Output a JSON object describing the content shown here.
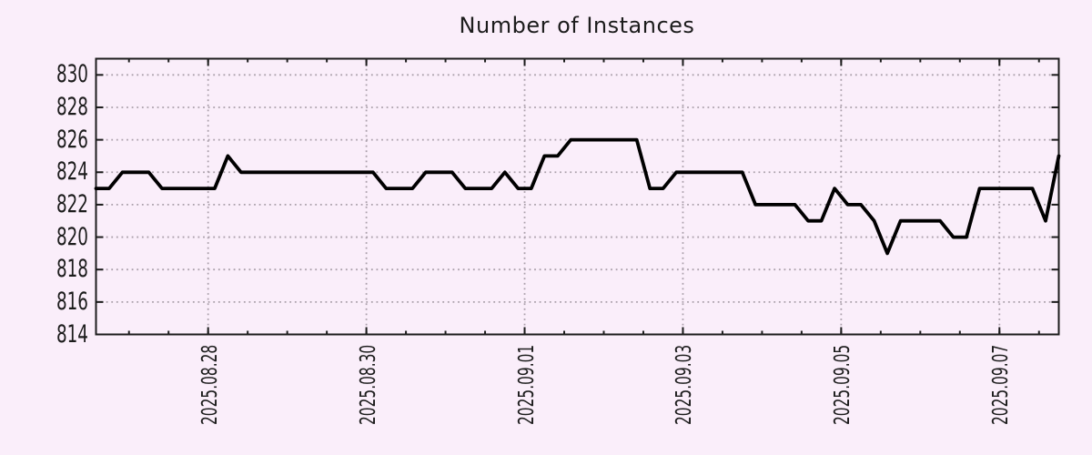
{
  "title": "Number of Instances",
  "colors": {
    "background": "#faeefa",
    "line": "#000000",
    "grid": "#aba0ab",
    "axis": "#1c1c1c",
    "text": "#1c1c1c"
  },
  "chart_data": {
    "type": "line",
    "title": "Number of Instances",
    "xlabel": "",
    "ylabel": "",
    "grid": true,
    "legend": "none",
    "ylim": [
      814,
      831
    ],
    "y_ticks": [
      814,
      816,
      818,
      820,
      822,
      824,
      826,
      828,
      830
    ],
    "x_start": "2025-08-26 14:00",
    "x_end": "2025-09-07 18:00",
    "x_span_hours": 292,
    "x_major_ticks": [
      {
        "hour_offset": 34,
        "label": "2025.08.28"
      },
      {
        "hour_offset": 82,
        "label": "2025.08.30"
      },
      {
        "hour_offset": 130,
        "label": "2025.09.01"
      },
      {
        "hour_offset": 178,
        "label": "2025.09.03"
      },
      {
        "hour_offset": 226,
        "label": "2025.09.05"
      },
      {
        "hour_offset": 274,
        "label": "2025.09.07"
      }
    ],
    "x_minor_tick_start_hour": 10,
    "x_minor_tick_step_hours": 12,
    "sample_interval_hours": 4,
    "series": [
      {
        "name": "instances",
        "values": [
          823,
          823,
          824,
          824,
          824,
          823,
          823,
          823,
          823,
          823,
          825,
          824,
          824,
          824,
          824,
          824,
          824,
          824,
          824,
          824,
          824,
          824,
          823,
          823,
          823,
          824,
          824,
          824,
          823,
          823,
          823,
          824,
          823,
          823,
          825,
          825,
          826,
          826,
          826,
          826,
          826,
          826,
          823,
          823,
          824,
          824,
          824,
          824,
          824,
          824,
          822,
          822,
          822,
          822,
          821,
          821,
          823,
          822,
          822,
          821,
          819,
          821,
          821,
          821,
          821,
          820,
          820,
          823,
          823,
          823,
          823,
          823,
          821,
          825
        ]
      }
    ]
  }
}
